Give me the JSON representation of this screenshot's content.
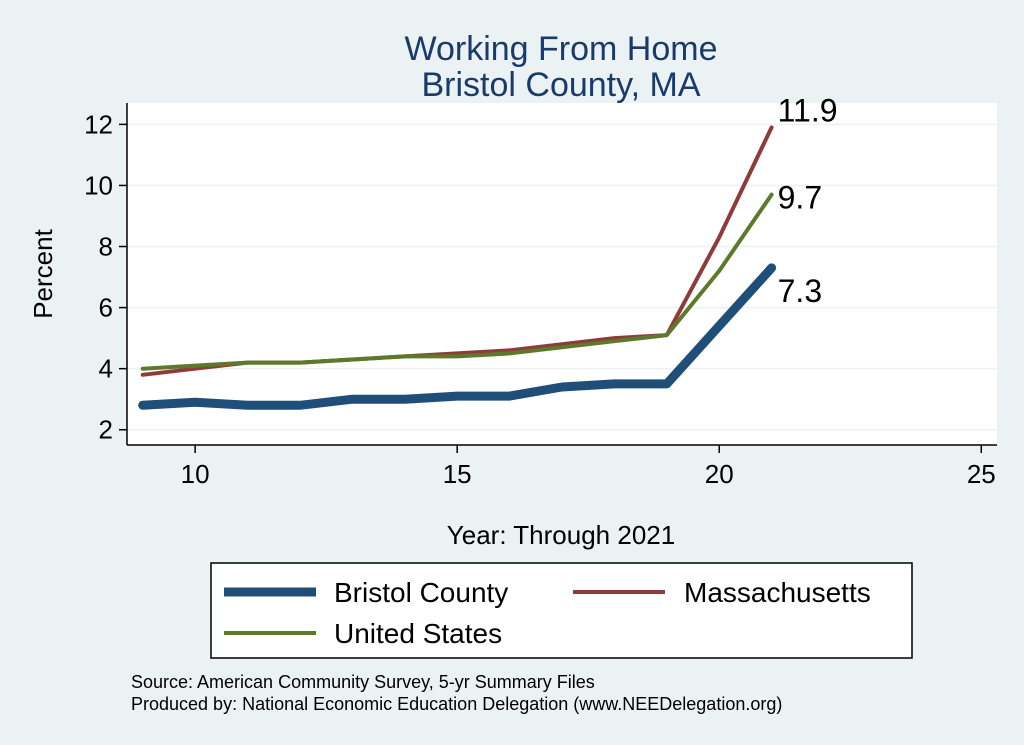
{
  "chart_data": {
    "type": "line",
    "title": "Working From Home",
    "subtitle": "Bristol County, MA",
    "xlabel": "Year: Through 2021",
    "ylabel": "Percent",
    "xlim": [
      8.7,
      25.3
    ],
    "ylim": [
      1.5,
      12.7
    ],
    "xticks": [
      10,
      15,
      20,
      25
    ],
    "yticks": [
      2,
      4,
      6,
      8,
      10,
      12
    ],
    "grid": true,
    "legend_position": "bottom",
    "series": [
      {
        "name": "Bristol County",
        "color": "#1f4e79",
        "x": [
          9,
          10,
          11,
          12,
          13,
          14,
          15,
          16,
          17,
          18,
          19,
          20,
          21
        ],
        "y": [
          2.8,
          2.9,
          2.8,
          2.8,
          3.0,
          3.0,
          3.1,
          3.1,
          3.4,
          3.5,
          3.5,
          5.4,
          7.3
        ],
        "end_label": "7.3"
      },
      {
        "name": "Massachusetts",
        "color": "#8f3b3b",
        "x": [
          9,
          10,
          11,
          12,
          13,
          14,
          15,
          16,
          17,
          18,
          19,
          20,
          21
        ],
        "y": [
          3.8,
          4.0,
          4.2,
          4.2,
          4.3,
          4.4,
          4.5,
          4.6,
          4.8,
          5.0,
          5.1,
          8.3,
          11.9
        ],
        "end_label": "11.9"
      },
      {
        "name": "United States",
        "color": "#5d7a2a",
        "x": [
          9,
          10,
          11,
          12,
          13,
          14,
          15,
          16,
          17,
          18,
          19,
          20,
          21
        ],
        "y": [
          4.0,
          4.1,
          4.2,
          4.2,
          4.3,
          4.4,
          4.4,
          4.5,
          4.7,
          4.9,
          5.1,
          7.2,
          9.7
        ],
        "end_label": "9.7"
      }
    ],
    "notes": [
      "Source: American Community Survey, 5-yr Summary Files",
      "Produced by: National Economic Education Delegation (www.NEEDelegation.org)"
    ]
  }
}
